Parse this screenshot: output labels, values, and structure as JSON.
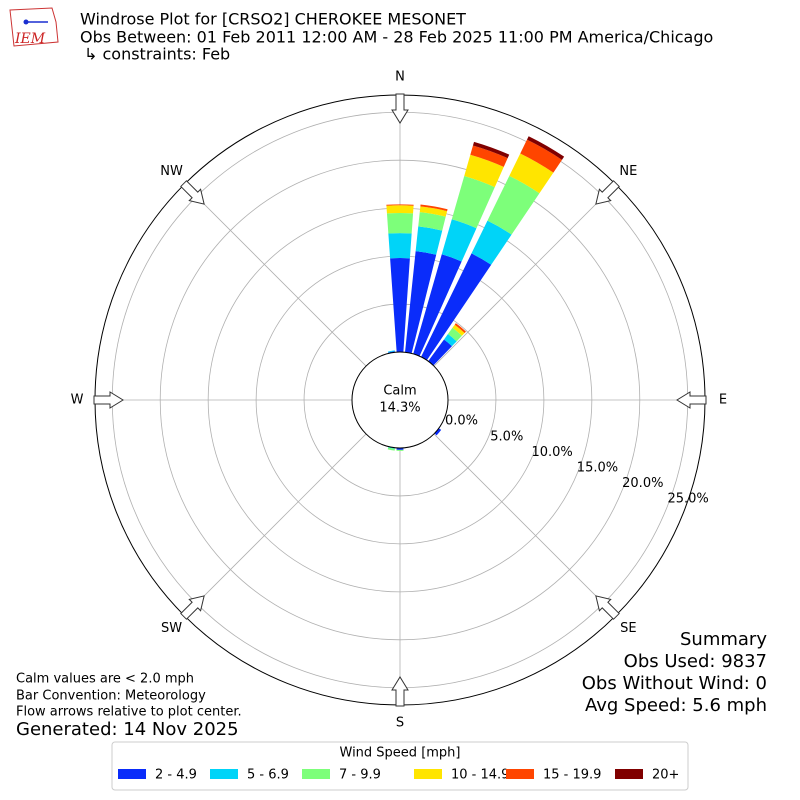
{
  "chart_data": {
    "type": "windrose",
    "logo_text": "IEM",
    "title": "Windrose Plot for [CRSO2] CHEROKEE MESONET",
    "subtitle": "Obs Between: 01 Feb 2011 12:00 AM - 28 Feb 2025 11:00 PM America/Chicago",
    "subtitle2": "↳ constraints: Feb",
    "calm_label": "Calm",
    "calm_value": 14.3,
    "calm_value_label": "14.3%",
    "direction_labels": [
      "N",
      "NE",
      "E",
      "SE",
      "S",
      "SW",
      "W",
      "NW"
    ],
    "x": [
      350,
      0,
      10,
      20,
      30,
      40,
      130,
      180,
      190
    ],
    "ylim": [
      0,
      26.8
    ],
    "yticks": [
      {
        "value": 0,
        "label": "0.0%"
      },
      {
        "value": 5,
        "label": "5.0%"
      },
      {
        "value": 10,
        "label": "10.0%"
      },
      {
        "value": 15,
        "label": "15.0%"
      },
      {
        "value": 20,
        "label": "20.0%"
      },
      {
        "value": 25,
        "label": "25.0%"
      }
    ],
    "grid": true,
    "legend_title": "Wind Speed [mph]",
    "series": [
      {
        "name": "2 - 4.9",
        "color": "#0a2cfa",
        "values": [
          0.1,
          9.8,
          10.6,
          10.8,
          12.0,
          2.8,
          0.3,
          0.2,
          0.0
        ]
      },
      {
        "name": "5 - 6.9",
        "color": "#00d4f8",
        "values": [
          0.1,
          2.6,
          2.6,
          3.8,
          3.8,
          0.7,
          0.0,
          0.0,
          0.1
        ]
      },
      {
        "name": "7 - 9.9",
        "color": "#7dff7a",
        "values": [
          0.0,
          2.1,
          1.5,
          4.7,
          5.2,
          0.8,
          0.0,
          0.1,
          0.2
        ]
      },
      {
        "name": "10 - 14.9",
        "color": "#ffe500",
        "values": [
          0.0,
          0.8,
          0.6,
          2.3,
          2.6,
          0.4,
          0.0,
          0.0,
          0.0
        ]
      },
      {
        "name": "15 - 19.9",
        "color": "#ff4500",
        "values": [
          0.0,
          0.1,
          0.2,
          1.0,
          1.6,
          0.2,
          0.0,
          0.0,
          0.0
        ]
      },
      {
        "name": "20+",
        "color": "#800000",
        "values": [
          0.0,
          0.0,
          0.0,
          0.4,
          0.4,
          0.0,
          0.0,
          0.0,
          0.0
        ]
      }
    ],
    "notes": [
      "Calm values are < 2.0 mph",
      "Bar Convention: Meteorology",
      "Flow arrows relative to plot center."
    ],
    "generated": "Generated: 14 Nov 2025",
    "summary": [
      "Summary",
      "Obs Used: 9837",
      "Obs Without Wind: 0",
      "Avg Speed: 5.6 mph"
    ]
  }
}
